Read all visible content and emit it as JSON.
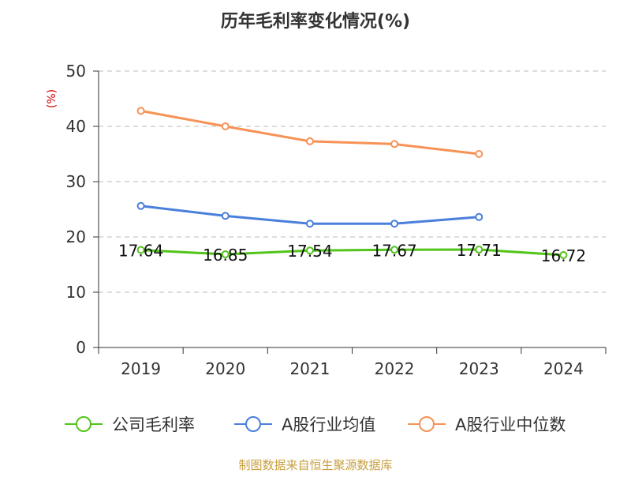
{
  "chart_data": {
    "type": "line",
    "title": "历年毛利率变化情况(%)",
    "ylabel": "(%)",
    "xlabel": "",
    "ylim": [
      0,
      50
    ],
    "yticks": [
      0,
      10,
      20,
      30,
      40,
      50
    ],
    "categories": [
      "2019",
      "2020",
      "2021",
      "2022",
      "2023",
      "2024"
    ],
    "grid": true,
    "legend_position": "bottom",
    "series": [
      {
        "name": "公司毛利率",
        "color": "#52c41a",
        "values": [
          17.64,
          16.85,
          17.54,
          17.67,
          17.71,
          16.72
        ],
        "show_labels": true
      },
      {
        "name": "A股行业均值",
        "color": "#4a7fdb",
        "values": [
          25.6,
          23.8,
          22.4,
          22.4,
          23.6,
          null
        ],
        "show_labels": false
      },
      {
        "name": "A股行业中位数",
        "color": "#f79256",
        "values": [
          42.8,
          40.0,
          37.3,
          36.8,
          35.0,
          null
        ],
        "show_labels": false
      }
    ],
    "source": "制图数据来自恒生聚源数据库"
  }
}
